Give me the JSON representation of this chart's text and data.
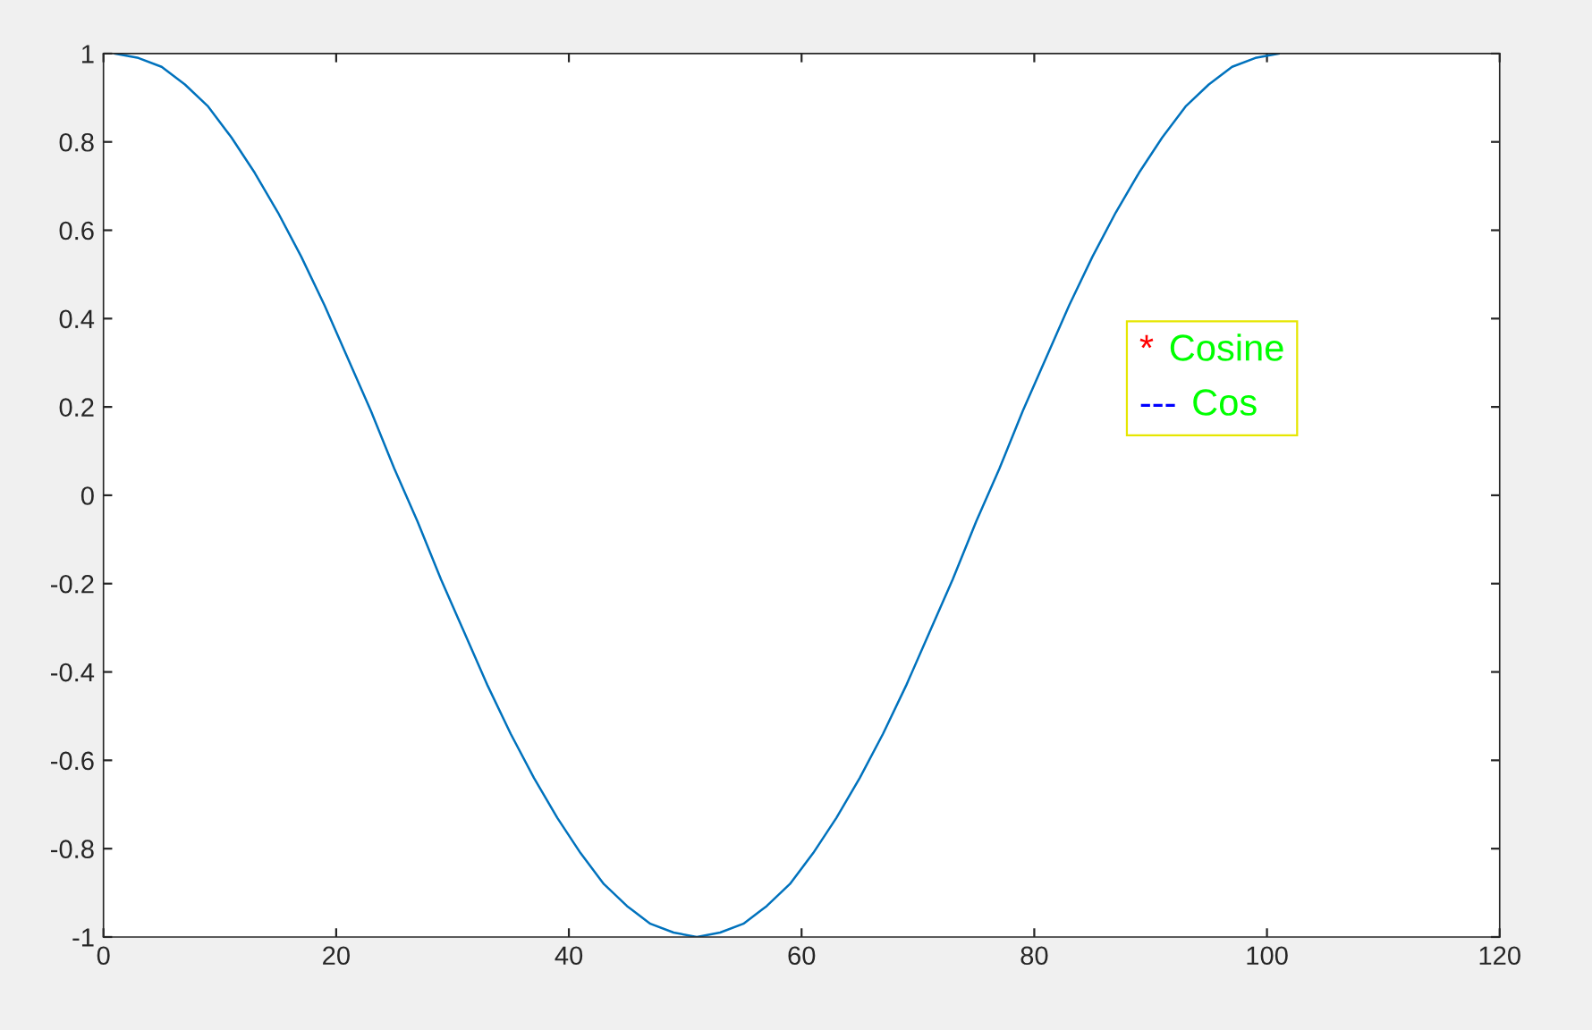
{
  "chart_data": {
    "type": "line",
    "x": [
      1,
      3,
      5,
      7,
      9,
      11,
      13,
      15,
      17,
      19,
      21,
      23,
      25,
      27,
      29,
      31,
      33,
      35,
      37,
      39,
      41,
      43,
      45,
      47,
      49,
      51,
      53,
      55,
      57,
      59,
      61,
      63,
      65,
      67,
      69,
      71,
      73,
      75,
      77,
      79,
      81,
      83,
      85,
      87,
      89,
      91,
      93,
      95,
      97,
      99,
      101
    ],
    "series": [
      {
        "color": "#0072bd",
        "values": [
          1,
          0.99,
          0.97,
          0.93,
          0.88,
          0.81,
          0.73,
          0.64,
          0.54,
          0.43,
          0.31,
          0.19,
          0.06,
          -0.06,
          -0.19,
          -0.31,
          -0.43,
          -0.54,
          -0.64,
          -0.73,
          -0.81,
          -0.88,
          -0.93,
          -0.97,
          -0.99,
          -1,
          -0.99,
          -0.97,
          -0.93,
          -0.88,
          -0.81,
          -0.73,
          -0.64,
          -0.54,
          -0.43,
          -0.31,
          -0.19,
          -0.06,
          0.06,
          0.19,
          0.31,
          0.43,
          0.54,
          0.64,
          0.73,
          0.81,
          0.88,
          0.93,
          0.97,
          0.99,
          1
        ]
      }
    ],
    "xlim": [
      0,
      120
    ],
    "xticks": [
      0,
      20,
      40,
      60,
      80,
      100,
      120
    ],
    "ylim": [
      -1,
      1
    ],
    "yticks": [
      -1,
      -0.8,
      -0.6,
      -0.4,
      -0.2,
      0,
      0.2,
      0.4,
      0.6,
      0.8,
      1
    ],
    "grid": false,
    "legend": false,
    "marker": "none",
    "line_style": "solid",
    "annotations": [
      "* Cosine",
      "--- Cos"
    ]
  }
}
